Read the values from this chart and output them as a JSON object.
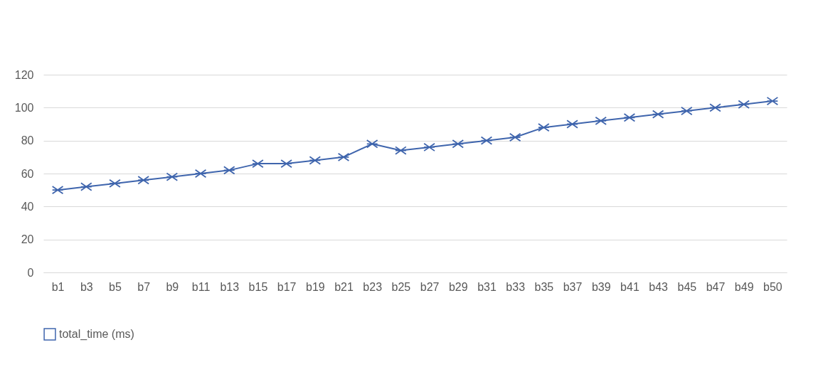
{
  "chart_data": {
    "type": "line",
    "categories": [
      "b1",
      "b3",
      "b5",
      "b7",
      "b9",
      "b11",
      "b13",
      "b15",
      "b17",
      "b19",
      "b21",
      "b23",
      "b25",
      "b27",
      "b29",
      "b31",
      "b33",
      "b35",
      "b37",
      "b39",
      "b41",
      "b43",
      "b45",
      "b47",
      "b49",
      "b50"
    ],
    "series": [
      {
        "name": "total_time (ms)",
        "color": "#3f65ad",
        "values": [
          50,
          52,
          54,
          56,
          58,
          60,
          62,
          66,
          66,
          68,
          70,
          78,
          74,
          76,
          78,
          80,
          82,
          88,
          90,
          92,
          94,
          96,
          98,
          100,
          102,
          104
        ]
      }
    ],
    "ylim": [
      0,
      120
    ],
    "yticks": [
      0,
      20,
      40,
      60,
      80,
      100,
      120
    ],
    "grid": "y",
    "legend": "bottom",
    "marker": "cross"
  }
}
